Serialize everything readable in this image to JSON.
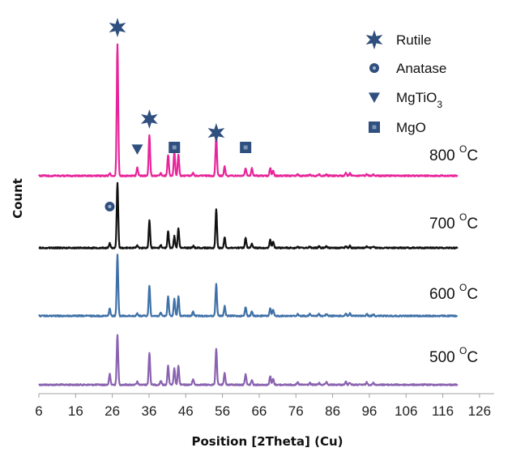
{
  "colors": {
    "800": "#e8249a",
    "700": "#111111",
    "600": "#3f71a8",
    "500": "#8a62b0",
    "marker": "#2f4f7f",
    "axis": "#a0a0a0"
  },
  "chart_data": {
    "type": "line",
    "title": "",
    "xlabel": "Position [2Theta] (Cu)",
    "ylabel": "Count",
    "xlim": [
      6,
      130
    ],
    "xticks": [
      6,
      16,
      26,
      36,
      46,
      56,
      66,
      76,
      86,
      96,
      106,
      116,
      126
    ],
    "x_range_plotted": [
      6,
      120
    ],
    "y_values_shown": false,
    "peaks": [
      {
        "x": 25.3,
        "phase": "Anatase"
      },
      {
        "x": 27.4,
        "phase": "Rutile"
      },
      {
        "x": 32.8,
        "phase": "MgTiO3"
      },
      {
        "x": 36.1,
        "phase": "Rutile"
      },
      {
        "x": 39.2,
        "phase": ""
      },
      {
        "x": 41.2,
        "phase": "Rutile"
      },
      {
        "x": 42.9,
        "phase": "MgO"
      },
      {
        "x": 44.0,
        "phase": "Rutile"
      },
      {
        "x": 48.0,
        "phase": "Anatase"
      },
      {
        "x": 54.3,
        "phase": "Rutile"
      },
      {
        "x": 56.6,
        "phase": "Rutile"
      },
      {
        "x": 62.3,
        "phase": "MgO"
      },
      {
        "x": 64.0,
        "phase": "Rutile"
      },
      {
        "x": 69.0,
        "phase": "Rutile"
      },
      {
        "x": 69.8,
        "phase": "Rutile"
      },
      {
        "x": 76.5,
        "phase": ""
      },
      {
        "x": 79.8,
        "phase": ""
      },
      {
        "x": 82.3,
        "phase": ""
      },
      {
        "x": 84.3,
        "phase": ""
      },
      {
        "x": 89.6,
        "phase": ""
      },
      {
        "x": 90.7,
        "phase": ""
      },
      {
        "x": 95.3,
        "phase": ""
      },
      {
        "x": 97.1,
        "phase": ""
      }
    ],
    "series": [
      {
        "key": "500",
        "label_num": "500",
        "label_unit": "C",
        "label_sup": "O",
        "color": "#8a62b0",
        "intensities": [
          0.18,
          0.85,
          0.05,
          0.55,
          0.07,
          0.32,
          0.28,
          0.32,
          0.1,
          0.62,
          0.2,
          0.18,
          0.08,
          0.15,
          0.1,
          0.04,
          0.03,
          0.03,
          0.04,
          0.05,
          0.04,
          0.04,
          0.03
        ]
      },
      {
        "key": "600",
        "label_num": "600",
        "label_unit": "C",
        "label_sup": "O",
        "color": "#3f71a8",
        "intensities": [
          0.12,
          1.0,
          0.04,
          0.5,
          0.05,
          0.32,
          0.28,
          0.32,
          0.07,
          0.52,
          0.16,
          0.15,
          0.07,
          0.12,
          0.1,
          0.03,
          0.03,
          0.03,
          0.03,
          0.04,
          0.04,
          0.03,
          0.03
        ]
      },
      {
        "key": "700",
        "label_num": "700",
        "label_unit": "C",
        "label_sup": "O",
        "color": "#111111",
        "intensities": [
          0.07,
          1.0,
          0.04,
          0.42,
          0.04,
          0.26,
          0.18,
          0.3,
          0.03,
          0.6,
          0.16,
          0.15,
          0.06,
          0.13,
          0.1,
          0.02,
          0.02,
          0.02,
          0.02,
          0.03,
          0.03,
          0.02,
          0.02
        ]
      },
      {
        "key": "800",
        "label_num": "800",
        "label_unit": "C",
        "label_sup": "O",
        "color": "#e8249a",
        "intensities": [
          0.02,
          1.0,
          0.06,
          0.31,
          0.02,
          0.16,
          0.18,
          0.16,
          0.02,
          0.3,
          0.07,
          0.06,
          0.06,
          0.06,
          0.04,
          0.01,
          0.01,
          0.01,
          0.01,
          0.02,
          0.02,
          0.01,
          0.01
        ]
      }
    ],
    "markers": [
      {
        "series": "800",
        "x": 27.4,
        "symbol": "star"
      },
      {
        "series": "800",
        "x": 36.1,
        "symbol": "star"
      },
      {
        "series": "800",
        "x": 32.8,
        "symbol": "triangle"
      },
      {
        "series": "800",
        "x": 42.9,
        "symbol": "square"
      },
      {
        "series": "800",
        "x": 54.3,
        "symbol": "star"
      },
      {
        "series": "800",
        "x": 62.3,
        "symbol": "square"
      },
      {
        "series": "700",
        "x": 25.3,
        "symbol": "circle"
      }
    ],
    "legend": {
      "placement": "top-right",
      "items": [
        {
          "symbol": "star",
          "label": "Rutile",
          "sub": ""
        },
        {
          "symbol": "circle",
          "label": "Anatase",
          "sub": ""
        },
        {
          "symbol": "triangle",
          "label": "MgTiO",
          "sub": "3"
        },
        {
          "symbol": "square",
          "label": "MgO",
          "sub": ""
        }
      ]
    },
    "grid": false
  }
}
